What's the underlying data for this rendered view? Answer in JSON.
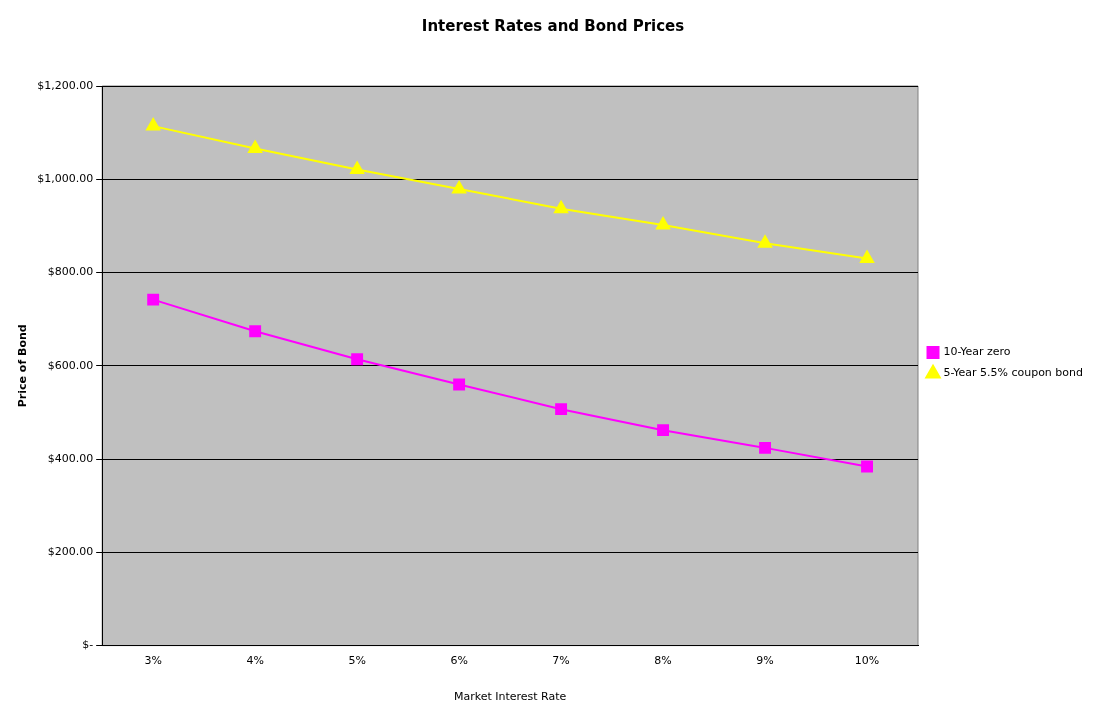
{
  "chart_data": {
    "type": "line",
    "title": "Interest Rates and Bond Prices",
    "xlabel": "Market Interest Rate",
    "ylabel": "Price of Bond",
    "categories": [
      "3%",
      "4%",
      "5%",
      "6%",
      "7%",
      "8%",
      "9%",
      "10%"
    ],
    "series": [
      {
        "name": "10-Year zero",
        "color": "#ff00ff",
        "marker": "square",
        "values": [
          742,
          674,
          614,
          560,
          507,
          462,
          424,
          384
        ]
      },
      {
        "name": "5-Year 5.5% coupon bond",
        "color": "#ffff00",
        "marker": "triangle",
        "values": [
          1114,
          1066,
          1021,
          979,
          937,
          902,
          863,
          830
        ]
      }
    ],
    "ylim": [
      0,
      1200
    ],
    "yticks": [
      {
        "value": 0,
        "label": "$-"
      },
      {
        "value": 200,
        "label": "$200.00"
      },
      {
        "value": 400,
        "label": "$400.00"
      },
      {
        "value": 600,
        "label": "$600.00"
      },
      {
        "value": 800,
        "label": "$800.00"
      },
      {
        "value": 1000,
        "label": "$1,000.00"
      },
      {
        "value": 1200,
        "label": "$1,200.00"
      }
    ],
    "grid": "y",
    "legend": "right",
    "line_style": "solid"
  }
}
